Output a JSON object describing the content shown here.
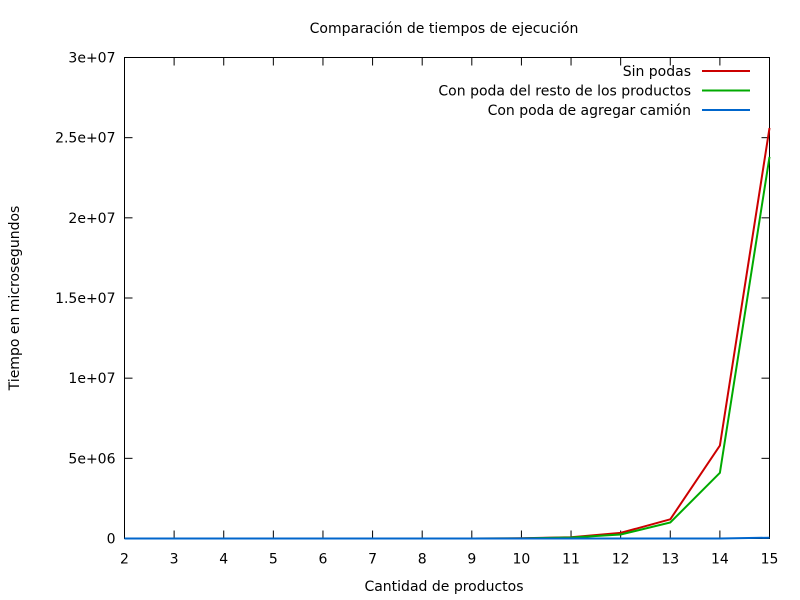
{
  "chart_data": {
    "type": "line",
    "title": "Comparación de tiempos de ejecución",
    "xlabel": "Cantidad de productos",
    "ylabel": "Tiempo en microsegundos",
    "xlim": [
      2,
      15
    ],
    "ylim": [
      0,
      30000000
    ],
    "x_ticks": [
      "2",
      "3",
      "4",
      "5",
      "6",
      "7",
      "8",
      "9",
      "10",
      "11",
      "12",
      "13",
      "14",
      "15"
    ],
    "y_ticks": [
      {
        "value": 0,
        "label": "0"
      },
      {
        "value": 5000000,
        "label": "5e+06"
      },
      {
        "value": 10000000,
        "label": "1e+07"
      },
      {
        "value": 15000000,
        "label": "1.5e+07"
      },
      {
        "value": 20000000,
        "label": "2e+07"
      },
      {
        "value": 25000000,
        "label": "2.5e+07"
      },
      {
        "value": 30000000,
        "label": "3e+07"
      }
    ],
    "grid": false,
    "legend_position": "top-right",
    "x": [
      2,
      3,
      4,
      5,
      6,
      7,
      8,
      9,
      10,
      11,
      12,
      13,
      14,
      15
    ],
    "series": [
      {
        "name": "Sin podas",
        "color": "#cc0000",
        "values": [
          0,
          0,
          0,
          0,
          0,
          0,
          0,
          0,
          10000,
          80000,
          350000,
          1200000,
          5800000,
          25600000
        ]
      },
      {
        "name": "Con poda del resto de los productos",
        "color": "#00aa00",
        "values": [
          0,
          0,
          0,
          0,
          0,
          0,
          0,
          0,
          8000,
          60000,
          250000,
          1000000,
          4100000,
          23800000
        ]
      },
      {
        "name": "Con poda de agregar camión",
        "color": "#0066cc",
        "values": [
          0,
          0,
          0,
          0,
          0,
          0,
          0,
          0,
          0,
          0,
          0,
          0,
          2000,
          50000
        ]
      }
    ]
  }
}
